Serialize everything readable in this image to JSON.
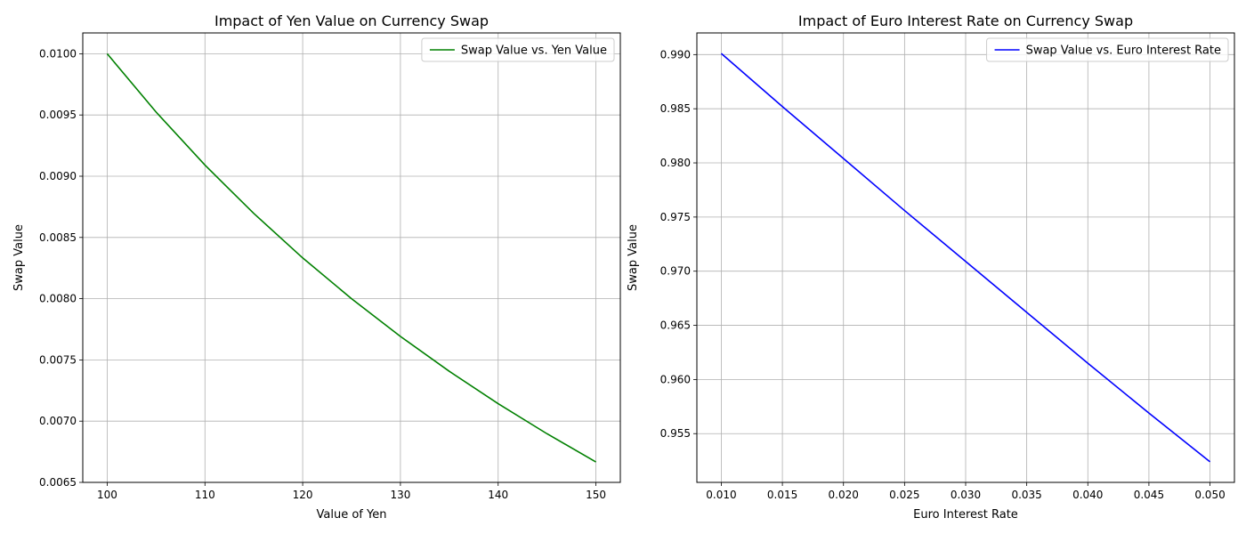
{
  "chart_data": [
    {
      "type": "line",
      "title": "Impact of Yen Value on Currency Swap",
      "xlabel": "Value of Yen",
      "ylabel": "Swap Value",
      "xlim": [
        97.5,
        152.5
      ],
      "ylim": [
        0.0065,
        0.01017
      ],
      "xticks": [
        100,
        110,
        120,
        130,
        140,
        150
      ],
      "yticks": [
        0.0065,
        0.007,
        0.0075,
        0.008,
        0.0085,
        0.009,
        0.0095,
        0.01
      ],
      "xtick_labels": [
        "100",
        "110",
        "120",
        "130",
        "140",
        "150"
      ],
      "ytick_labels": [
        "0.0065",
        "0.0070",
        "0.0075",
        "0.0080",
        "0.0085",
        "0.0090",
        "0.0095",
        "0.0100"
      ],
      "grid": true,
      "legend_position": "top-right",
      "series": [
        {
          "name": "Swap Value vs. Yen Value",
          "color": "#008000",
          "x": [
            100,
            105,
            110,
            115,
            120,
            125,
            130,
            135,
            140,
            145,
            150
          ],
          "y": [
            0.01,
            0.009524,
            0.009091,
            0.008696,
            0.008333,
            0.008,
            0.007692,
            0.007407,
            0.007143,
            0.006897,
            0.006667
          ]
        }
      ]
    },
    {
      "type": "line",
      "title": "Impact of Euro Interest Rate on Currency Swap",
      "xlabel": "Euro Interest Rate",
      "ylabel": "Swap Value",
      "xlim": [
        0.008,
        0.052
      ],
      "ylim": [
        0.9505,
        0.992
      ],
      "xticks": [
        0.01,
        0.015,
        0.02,
        0.025,
        0.03,
        0.035,
        0.04,
        0.045,
        0.05
      ],
      "yticks": [
        0.955,
        0.96,
        0.965,
        0.97,
        0.975,
        0.98,
        0.985,
        0.99
      ],
      "xtick_labels": [
        "0.010",
        "0.015",
        "0.020",
        "0.025",
        "0.030",
        "0.035",
        "0.040",
        "0.045",
        "0.050"
      ],
      "ytick_labels": [
        "0.955",
        "0.960",
        "0.965",
        "0.970",
        "0.975",
        "0.980",
        "0.985",
        "0.990"
      ],
      "grid": true,
      "legend_position": "top-right",
      "series": [
        {
          "name": "Swap Value vs. Euro Interest Rate",
          "color": "#0000ff",
          "x": [
            0.01,
            0.015,
            0.02,
            0.025,
            0.03,
            0.035,
            0.04,
            0.045,
            0.05
          ],
          "y": [
            0.9901,
            0.9852,
            0.9804,
            0.9756,
            0.9709,
            0.9662,
            0.9615,
            0.9569,
            0.9524
          ]
        }
      ]
    }
  ]
}
